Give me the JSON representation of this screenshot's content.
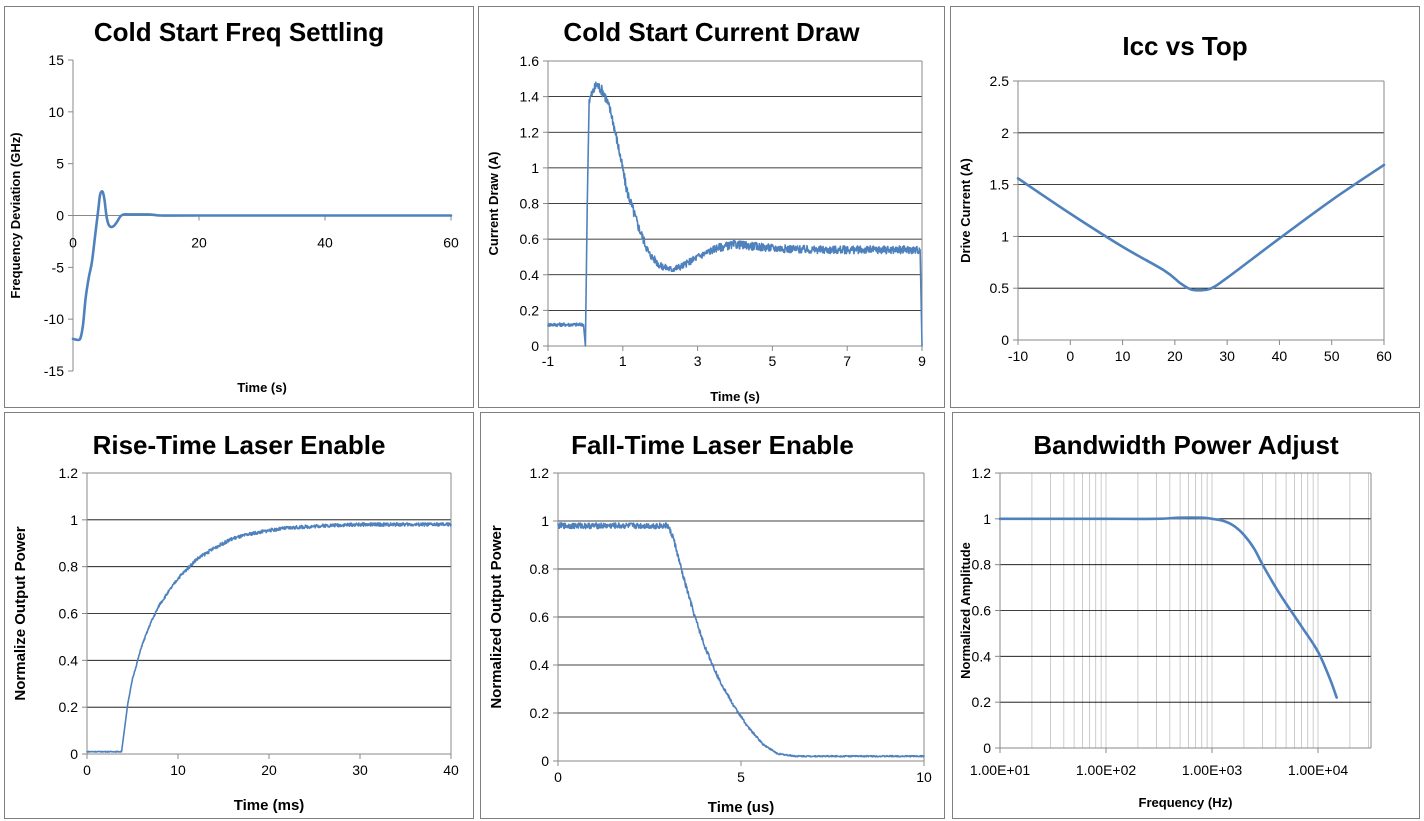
{
  "colors": {
    "series": "#4f81bd"
  },
  "chart_data": [
    {
      "id": "c1",
      "type": "line",
      "title": "Cold Start Freq Settling",
      "xlabel": "Time (s)",
      "ylabel": "Frequency Deviation (GHz)",
      "xlim": [
        0,
        60
      ],
      "ylim": [
        -15,
        15
      ],
      "xticks": [
        0,
        20,
        40,
        60
      ],
      "xtick_labels": [
        "0",
        "20",
        "40",
        "60"
      ],
      "yticks": [
        -15,
        -10,
        -5,
        0,
        5,
        10,
        15
      ],
      "ytick_labels": [
        "-15",
        "-10",
        "-5",
        "0",
        "5",
        "10",
        "15"
      ],
      "grid": false,
      "frame": false,
      "x_axis_at_zero": true,
      "series": [
        {
          "x": [
            0,
            0.8,
            1.2,
            1.6,
            2,
            2.5,
            3,
            3.5,
            4,
            4.3,
            4.7,
            5,
            5.3,
            5.6,
            6,
            6.5,
            7,
            7.5,
            8,
            9,
            10,
            12,
            13,
            14,
            20,
            40,
            60
          ],
          "y": [
            -11.9,
            -12,
            -11.8,
            -10.5,
            -8,
            -6,
            -4.5,
            -2,
            0.5,
            2,
            2.3,
            1.5,
            0,
            -0.8,
            -1.1,
            -1.0,
            -0.6,
            -0.1,
            0.1,
            0.1,
            0.1,
            0.1,
            0.05,
            0,
            0,
            0,
            0
          ]
        }
      ]
    },
    {
      "id": "c2",
      "type": "line",
      "title": "Cold Start Current Draw",
      "xlabel": "Time (s)",
      "ylabel": "Current Draw (A)",
      "xlim": [
        -1,
        9
      ],
      "ylim": [
        0,
        1.6
      ],
      "xticks": [
        -1,
        1,
        3,
        5,
        7,
        9
      ],
      "xtick_labels": [
        "-1",
        "1",
        "3",
        "5",
        "7",
        "9"
      ],
      "yticks": [
        0,
        0.2,
        0.4,
        0.6,
        0.8,
        1,
        1.2,
        1.4,
        1.6
      ],
      "ytick_labels": [
        "0",
        "0.2",
        "0.4",
        "0.6",
        "0.8",
        "1",
        "1.2",
        "1.4",
        "1.6"
      ],
      "grid": true,
      "frame": true,
      "noise": 0.05,
      "series": [
        {
          "x": [
            -1,
            -0.05,
            0,
            0.05,
            0.1,
            0.3,
            0.5,
            0.7,
            0.9,
            1.1,
            1.4,
            1.7,
            2,
            2.3,
            2.6,
            3,
            3.5,
            4,
            4.5,
            5,
            6,
            7,
            8,
            8.95,
            9
          ],
          "y": [
            0.12,
            0.12,
            0.0,
            0.8,
            1.38,
            1.47,
            1.42,
            1.3,
            1.1,
            0.88,
            0.68,
            0.52,
            0.45,
            0.43,
            0.45,
            0.5,
            0.55,
            0.57,
            0.56,
            0.55,
            0.54,
            0.54,
            0.54,
            0.54,
            0.0
          ]
        }
      ]
    },
    {
      "id": "c3",
      "type": "line",
      "title": "Icc vs Top",
      "xlabel": "",
      "ylabel": "Drive Current (A)",
      "xlim": [
        -10,
        60
      ],
      "ylim": [
        0,
        2.5
      ],
      "xticks": [
        -10,
        0,
        10,
        20,
        30,
        40,
        50,
        60
      ],
      "xtick_labels": [
        "-10",
        "0",
        "10",
        "20",
        "30",
        "40",
        "50",
        "60"
      ],
      "yticks": [
        0,
        0.5,
        1,
        1.5,
        2,
        2.5
      ],
      "ytick_labels": [
        "0",
        "0.5",
        "1",
        "1.5",
        "2",
        "2.5"
      ],
      "grid": true,
      "frame": true,
      "series": [
        {
          "x": [
            -10,
            0,
            10,
            18,
            21,
            23,
            25,
            27,
            30,
            40,
            50,
            60
          ],
          "y": [
            1.56,
            1.22,
            0.9,
            0.67,
            0.55,
            0.49,
            0.48,
            0.5,
            0.6,
            0.98,
            1.35,
            1.69
          ]
        }
      ]
    },
    {
      "id": "c4",
      "type": "line",
      "title": "Rise-Time Laser Enable",
      "xlabel": "Time (ms)",
      "ylabel": "Normalize Output Power",
      "xlim": [
        0,
        40
      ],
      "ylim": [
        0,
        1.2
      ],
      "xticks": [
        0,
        10,
        20,
        30,
        40
      ],
      "xtick_labels": [
        "0",
        "10",
        "20",
        "30",
        "40"
      ],
      "yticks": [
        0,
        0.2,
        0.4,
        0.6,
        0.8,
        1,
        1.2
      ],
      "ytick_labels": [
        "0",
        "0.2",
        "0.4",
        "0.6",
        "0.8",
        "1",
        "1.2"
      ],
      "grid": true,
      "frame": true,
      "noise": 0.012,
      "series": [
        {
          "x": [
            0,
            3.8,
            4.5,
            5,
            6,
            7,
            8,
            10,
            12,
            14,
            16,
            18,
            20,
            22,
            24,
            26,
            28,
            30,
            35,
            40
          ],
          "y": [
            0.01,
            0.01,
            0.22,
            0.32,
            0.46,
            0.56,
            0.64,
            0.75,
            0.83,
            0.88,
            0.92,
            0.94,
            0.955,
            0.965,
            0.97,
            0.975,
            0.978,
            0.98,
            0.98,
            0.98
          ]
        }
      ]
    },
    {
      "id": "c5",
      "type": "line",
      "title": "Fall-Time Laser Enable",
      "xlabel": "Time (us)",
      "ylabel": "Normalized Output Power",
      "xlim": [
        0,
        10
      ],
      "ylim": [
        0,
        1.2
      ],
      "xticks": [
        0,
        5,
        10
      ],
      "xtick_labels": [
        "0",
        "5",
        "10"
      ],
      "yticks": [
        0,
        0.2,
        0.4,
        0.6,
        0.8,
        1,
        1.2
      ],
      "ytick_labels": [
        "0",
        "0.2",
        "0.4",
        "0.6",
        "0.8",
        "1",
        "1.2"
      ],
      "grid": true,
      "frame": true,
      "noise": 0.02,
      "series": [
        {
          "x": [
            0,
            3,
            3.15,
            3.4,
            3.7,
            4,
            4.4,
            4.8,
            5.2,
            5.6,
            6,
            6.5,
            7,
            8,
            10
          ],
          "y": [
            0.98,
            0.98,
            0.93,
            0.78,
            0.62,
            0.48,
            0.34,
            0.23,
            0.14,
            0.07,
            0.03,
            0.02,
            0.02,
            0.02,
            0.02
          ]
        }
      ]
    },
    {
      "id": "c6",
      "type": "line",
      "title": "Bandwidth Power Adjust",
      "xlabel": "Frequency (Hz)",
      "ylabel": "Normalized Amplitude",
      "xscale": "log",
      "xlim": [
        10,
        31622
      ],
      "ylim": [
        0,
        1.2
      ],
      "xticks": [
        10,
        100,
        1000,
        10000
      ],
      "xtick_labels": [
        "1.00E+01",
        "1.00E+02",
        "1.00E+03",
        "1.00E+04"
      ],
      "yticks": [
        0,
        0.2,
        0.4,
        0.6,
        0.8,
        1,
        1.2
      ],
      "ytick_labels": [
        "0",
        "0.2",
        "0.4",
        "0.6",
        "0.8",
        "1",
        "1.2"
      ],
      "grid": true,
      "minor_grid": true,
      "frame": true,
      "series": [
        {
          "x": [
            10,
            30,
            100,
            300,
            500,
            800,
            1000,
            1300,
            1600,
            2000,
            2500,
            3000,
            4000,
            5000,
            7000,
            10000,
            13000,
            15000
          ],
          "y": [
            1.0,
            1.0,
            1.0,
            1.0,
            1.005,
            1.005,
            1.0,
            0.99,
            0.97,
            0.93,
            0.87,
            0.8,
            0.7,
            0.63,
            0.53,
            0.42,
            0.3,
            0.22
          ]
        }
      ]
    }
  ]
}
